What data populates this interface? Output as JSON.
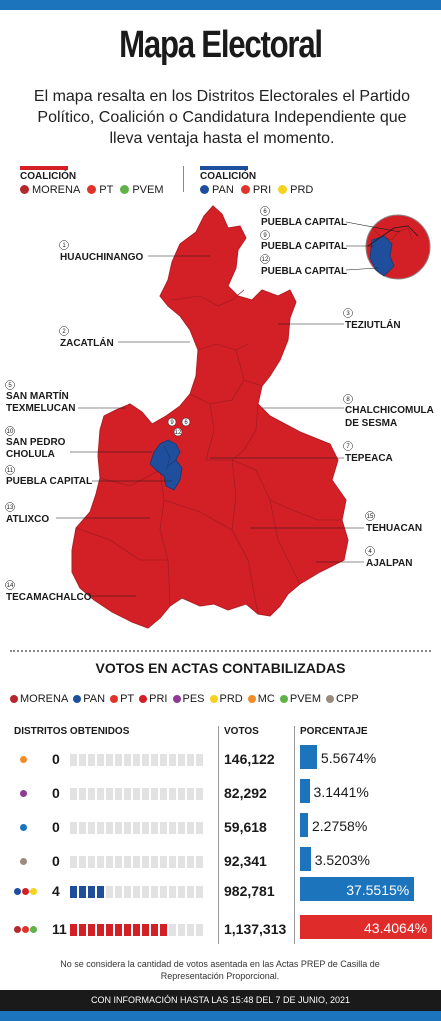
{
  "header": {
    "title": "Mapa Electoral",
    "subtitle": "El mapa resalta en los Distritos Electorales el Partido Político, Coalición o Candidatura Independiente que lleva ventaja hasta el momento."
  },
  "coalitions": [
    {
      "heading": "COALICIÓN",
      "color": "#d32027",
      "parties": [
        {
          "name": "MORENA",
          "color": "#b3282d"
        },
        {
          "name": "PT",
          "color": "#e0332b"
        },
        {
          "name": "PVEM",
          "color": "#5fb246"
        }
      ]
    },
    {
      "heading": "COALICIÓN",
      "color": "#1f4f9c",
      "parties": [
        {
          "name": "PAN",
          "color": "#1f4f9c"
        },
        {
          "name": "PRI",
          "color": "#e0332b"
        },
        {
          "name": "PRD",
          "color": "#f6d21f"
        }
      ]
    }
  ],
  "map": {
    "colors": {
      "coalition_morena": "#d32027",
      "coalition_pan": "#1f4f9c"
    },
    "districts": [
      {
        "num": "1",
        "name": "HUAUCHINANGO"
      },
      {
        "num": "2",
        "name": "ZACATLÁN"
      },
      {
        "num": "3",
        "name": "TEZIUTLÁN"
      },
      {
        "num": "4",
        "name": "AJALPAN"
      },
      {
        "num": "5",
        "name": "SAN MARTÍN",
        "name2": "TEXMELUCAN"
      },
      {
        "num": "6",
        "name": "PUEBLA CAPITAL"
      },
      {
        "num": "7",
        "name": "TEPEACA"
      },
      {
        "num": "8",
        "name": "CHALCHICOMULA",
        "name2": "DE SESMA"
      },
      {
        "num": "9",
        "name": "PUEBLA CAPITAL"
      },
      {
        "num": "10",
        "name": "SAN PEDRO",
        "name2": "CHOLULA"
      },
      {
        "num": "11",
        "name": "PUEBLA CAPITAL"
      },
      {
        "num": "12",
        "name": "PUEBLA CAPITAL"
      },
      {
        "num": "13",
        "name": "ATLIXCO"
      },
      {
        "num": "14",
        "name": "TECAMACHALCO"
      },
      {
        "num": "15",
        "name": "TEHUACAN"
      }
    ],
    "inset_labels": [
      "6",
      "9",
      "12"
    ],
    "city_labels": [
      "9",
      "6",
      "12",
      "10",
      "11"
    ]
  },
  "votes": {
    "title": "VOTOS EN ACTAS CONTABILIZADAS",
    "legend": [
      {
        "name": "MORENA",
        "color": "#b3282d"
      },
      {
        "name": "PAN",
        "color": "#1f4f9c"
      },
      {
        "name": "PT",
        "color": "#e0332b"
      },
      {
        "name": "PRI",
        "color": "#d32027"
      },
      {
        "name": "PES",
        "color": "#8e3a96"
      },
      {
        "name": "PRD",
        "color": "#f6d21f"
      },
      {
        "name": "MC",
        "color": "#f28c28"
      },
      {
        "name": "PVEM",
        "color": "#5fb246"
      },
      {
        "name": "CPP",
        "color": "#9b8b7a"
      }
    ],
    "headers": {
      "districts": "DISTRITOS OBTENIDOS",
      "votes": "VOTOS",
      "percent": "PORCENTAJE"
    },
    "rows": [
      {
        "dots": [
          "#f28c28"
        ],
        "districts": "0",
        "won": 0,
        "votes": "146,122",
        "percent": "5.5674%",
        "pct_value": 5.5674,
        "bar_color": "#1c75bc",
        "fill": "#1f4f9c"
      },
      {
        "dots": [
          "#8e3a96"
        ],
        "districts": "0",
        "won": 0,
        "votes": "82,292",
        "percent": "3.1441%",
        "pct_value": 3.1441,
        "bar_color": "#1c75bc",
        "fill": "#1f4f9c"
      },
      {
        "dots": [
          "#1c75bc"
        ],
        "districts": "0",
        "won": 0,
        "votes": "59,618",
        "percent": "2.2758%",
        "pct_value": 2.2758,
        "bar_color": "#1c75bc",
        "fill": "#1f4f9c"
      },
      {
        "dots": [
          "#9b8b7a"
        ],
        "districts": "0",
        "won": 0,
        "votes": "92,341",
        "percent": "3.5203%",
        "pct_value": 3.5203,
        "bar_color": "#1c75bc",
        "fill": "#1f4f9c"
      },
      {
        "dots": [
          "#1f4f9c",
          "#d32027",
          "#f6d21f"
        ],
        "districts": "4",
        "won": 4,
        "votes": "982,781",
        "percent": "37.5515%",
        "pct_value": 37.5515,
        "bar_color": "#1c75bc",
        "fill": "#1f4f9c"
      },
      {
        "dots": [
          "#b3282d",
          "#e0332b",
          "#5fb246"
        ],
        "districts": "11",
        "won": 11,
        "votes": "1,137,313",
        "percent": "43.4064%",
        "pct_value": 43.4064,
        "bar_color": "#e02b2b",
        "fill": "#d32027"
      }
    ],
    "total_boxes": 15
  },
  "footnote": "No se considera la cantidad de votos asentada en las Actas PREP de Casilla de Representación Proporcional.",
  "footer": "CON INFORMACIÓN HASTA LAS 15:48 DEL 7 DE JUNIO, 2021"
}
